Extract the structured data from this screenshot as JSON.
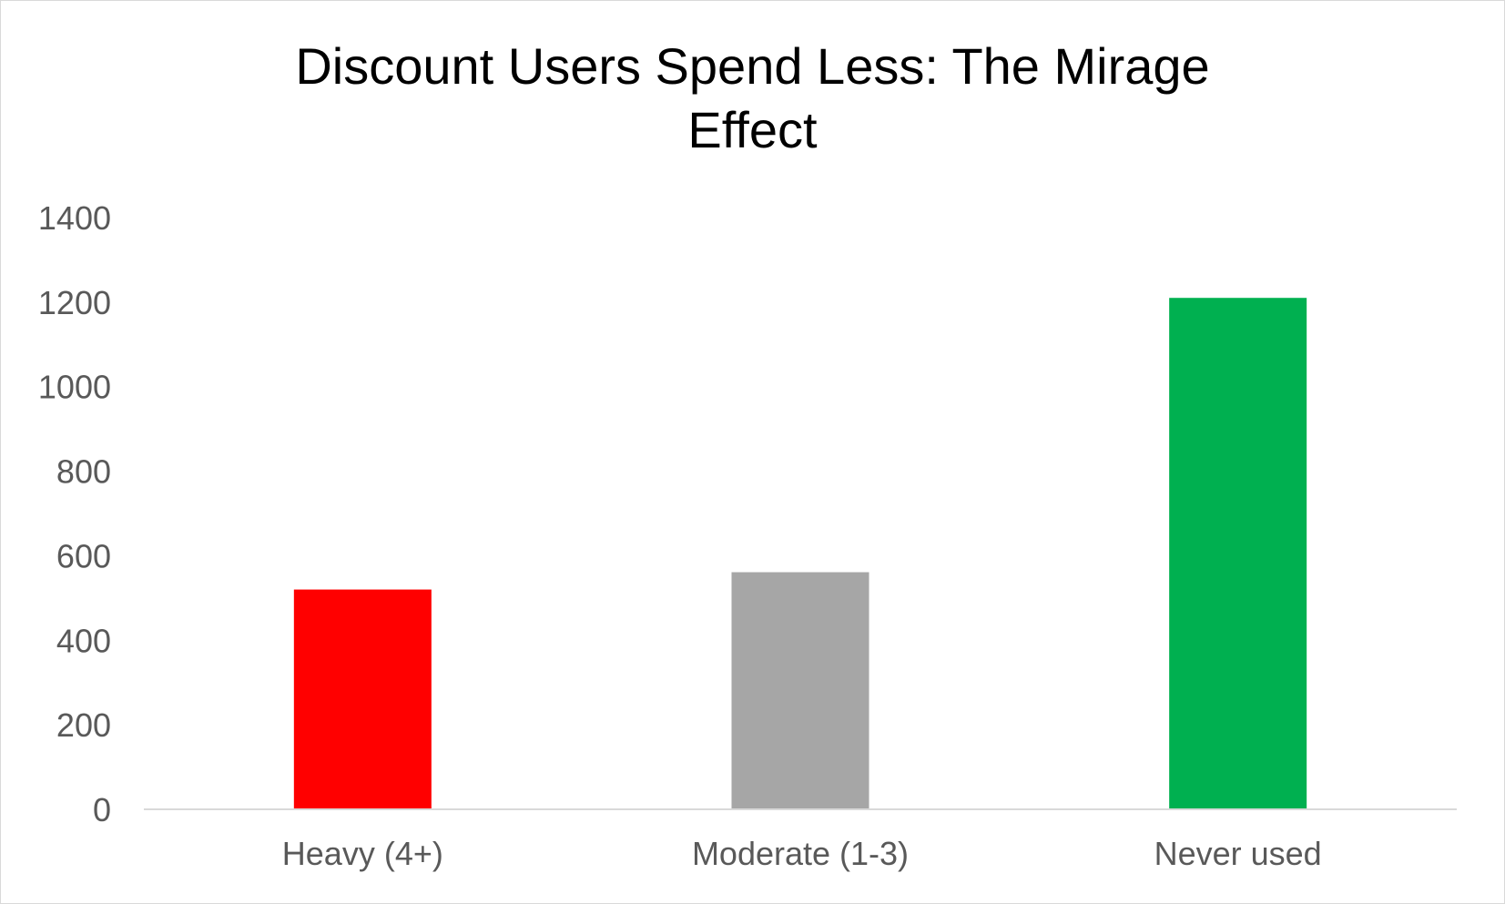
{
  "chart_data": {
    "type": "bar",
    "title_lines": [
      "Discount Users Spend Less: The Mirage",
      "Effect"
    ],
    "categories": [
      "Heavy (4+)",
      "Moderate (1-3)",
      "Never used"
    ],
    "values": [
      520,
      561,
      1210
    ],
    "bar_colors": [
      "#ff0000",
      "#a6a6a6",
      "#00b050"
    ],
    "ylim": [
      0,
      1400
    ],
    "yticks": [
      0,
      200,
      400,
      600,
      800,
      1000,
      1200,
      1400
    ],
    "xlabel": "",
    "ylabel": "",
    "grid": false,
    "legend": "none"
  }
}
